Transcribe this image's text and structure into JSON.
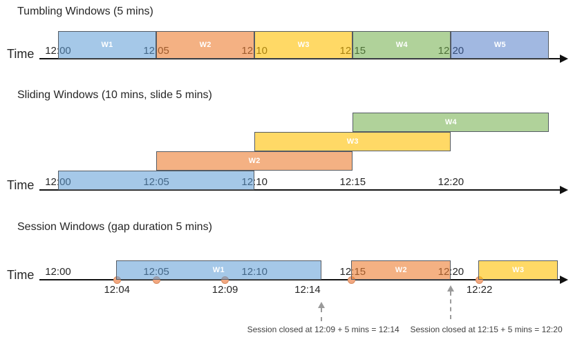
{
  "palette": {
    "axis": "#111111",
    "text": "#262626",
    "annotation_text": "#404040",
    "annotation_arrow": "#9a9a9a",
    "bar_border": "#545b63",
    "event_fill": "#f2a881",
    "event_border": "#d98c5f",
    "fills": {
      "blue": "rgba(91,155,213,0.55)",
      "orange": "rgba(237,125,49,0.60)",
      "yellow": "rgba(255,192,0,0.60)",
      "green": "rgba(112,173,71,0.55)",
      "blue2": "rgba(68,114,196,0.50)"
    }
  },
  "ticks": [
    {
      "t": 0,
      "label": "12:00"
    },
    {
      "t": 5,
      "label": "12:05"
    },
    {
      "t": 10,
      "label": "12:10"
    },
    {
      "t": 15,
      "label": "12:15"
    },
    {
      "t": 20,
      "label": "12:20"
    }
  ],
  "sections": [
    {
      "id": "tumbling",
      "title": "Tumbling Windows (5 mins)",
      "time_label": "Time",
      "windows": [
        {
          "label": "W1",
          "from": 0,
          "to": 5,
          "color": "blue"
        },
        {
          "label": "W2",
          "from": 5,
          "to": 10,
          "color": "orange"
        },
        {
          "label": "W3",
          "from": 10,
          "to": 15,
          "color": "yellow"
        },
        {
          "label": "W4",
          "from": 15,
          "to": 20,
          "color": "green"
        },
        {
          "label": "W5",
          "from": 20,
          "to": 25,
          "color": "blue2"
        }
      ]
    },
    {
      "id": "sliding",
      "title": "Sliding Windows (10 mins, slide 5 mins)",
      "time_label": "Time",
      "windows": [
        {
          "label": "W1",
          "from": 0,
          "to": 10,
          "color": "blue",
          "row": 0,
          "label_under": true
        },
        {
          "label": "W2",
          "from": 5,
          "to": 15,
          "color": "orange",
          "row": 1
        },
        {
          "label": "W3",
          "from": 10,
          "to": 20,
          "color": "yellow",
          "row": 2
        },
        {
          "label": "W4",
          "from": 15,
          "to": 25,
          "color": "green",
          "row": 3
        }
      ]
    },
    {
      "id": "session",
      "title": "Session Windows (gap duration 5 mins)",
      "time_label": "Time",
      "windows": [
        {
          "label": "W1",
          "from": 2.95,
          "to": 13.4,
          "color": "blue"
        },
        {
          "label": "W2",
          "from": 14.93,
          "to": 20.0,
          "color": "orange"
        },
        {
          "label": "W3",
          "from": 21.4,
          "to": 25.45,
          "color": "yellow"
        }
      ],
      "events": [
        {
          "t": 3.0
        },
        {
          "t": 5.0
        },
        {
          "t": 8.5
        },
        {
          "t": 14.93
        },
        {
          "t": 21.45
        }
      ],
      "event_labels": [
        {
          "t": 3.0,
          "label": "12:04"
        },
        {
          "t": 8.5,
          "label": "12:09"
        },
        {
          "t": 12.7,
          "label": "12:14"
        },
        {
          "t": 21.45,
          "label": "12:22"
        }
      ],
      "annotations": [
        {
          "arrow_t": 13.4,
          "text_center_t": 13.5,
          "text": "Session closed at 12:09 + 5 mins = 12:14"
        },
        {
          "arrow_t": 20.0,
          "text_center_t": 21.8,
          "text": "Session closed at 12:15 + 5 mins = 12:20"
        }
      ]
    }
  ]
}
